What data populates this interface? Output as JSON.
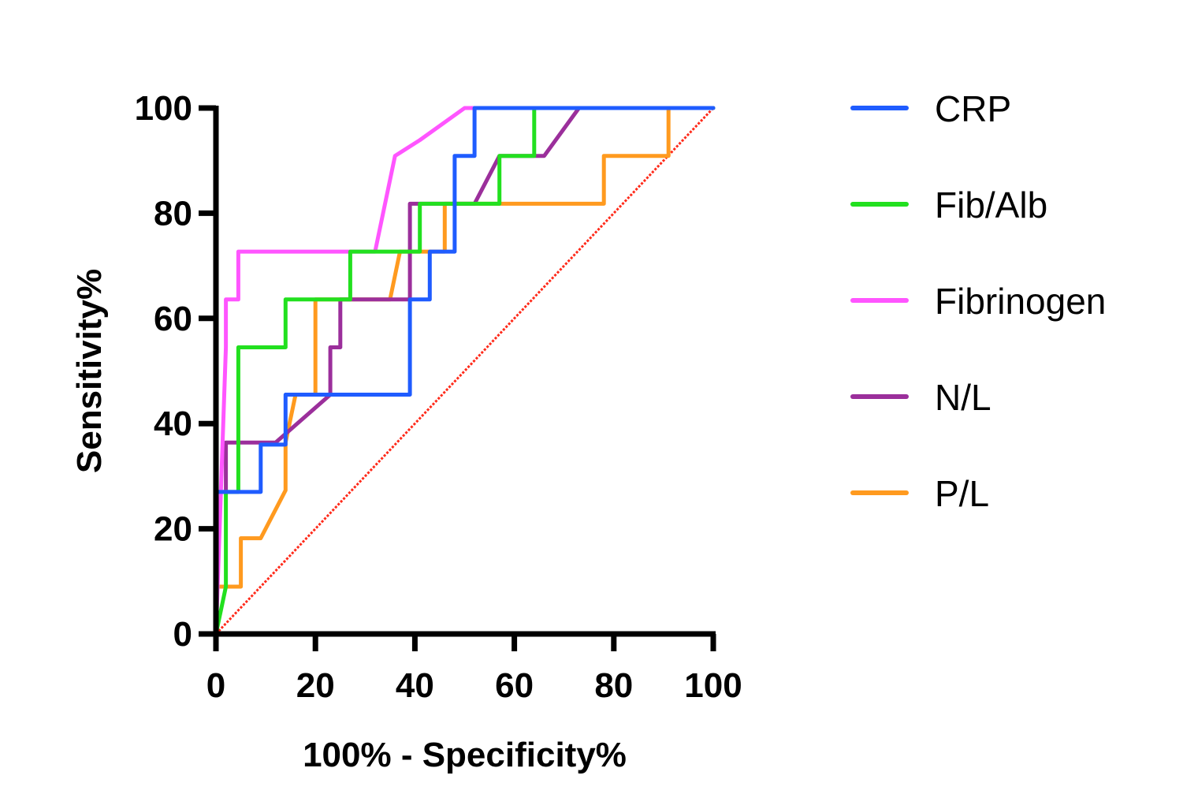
{
  "chart_data": {
    "type": "line",
    "title": "",
    "xlabel": "100% - Specificity%",
    "ylabel": "Sensitivity%",
    "xlim": [
      0,
      100
    ],
    "ylim": [
      0,
      100
    ],
    "xticks": [
      0,
      20,
      40,
      60,
      80,
      100
    ],
    "yticks": [
      0,
      20,
      40,
      60,
      80,
      100
    ],
    "grid": false,
    "legend_position": "right",
    "series": [
      {
        "name": "CRP",
        "color": "#1f5cff",
        "x": [
          0,
          0,
          0,
          2,
          2,
          9,
          9,
          14,
          14,
          39,
          39,
          43,
          43,
          48,
          48,
          52,
          52,
          100
        ],
        "y": [
          0,
          9,
          27,
          27,
          27,
          27,
          36,
          36,
          45.5,
          45.5,
          63.6,
          63.6,
          72.7,
          72.7,
          90.9,
          90.9,
          100,
          100
        ]
      },
      {
        "name": "Fib/Alb",
        "color": "#22e01f",
        "x": [
          0,
          2,
          2,
          4.5,
          4.5,
          14,
          14,
          27,
          27,
          41,
          41,
          57,
          57,
          64,
          64,
          100
        ],
        "y": [
          0,
          9,
          27,
          27,
          54.5,
          54.5,
          63.6,
          63.6,
          72.7,
          72.7,
          81.8,
          81.8,
          90.9,
          90.9,
          100,
          100
        ]
      },
      {
        "name": "Fibrinogen",
        "color": "#ff55ff",
        "x": [
          0,
          2,
          2,
          4.5,
          4.5,
          32,
          36,
          41,
          50,
          100
        ],
        "y": [
          0,
          54.5,
          63.6,
          63.6,
          72.7,
          72.7,
          90.9,
          93.9,
          100,
          100
        ]
      },
      {
        "name": "N/L",
        "color": "#9b2f9b",
        "x": [
          0,
          0,
          2,
          2,
          12,
          23,
          23,
          25,
          25,
          35,
          39,
          39,
          45,
          52,
          57,
          66,
          73,
          100
        ],
        "y": [
          0,
          27,
          27,
          36.4,
          36.4,
          45.5,
          54.5,
          54.5,
          63.6,
          63.6,
          63.6,
          81.8,
          81.8,
          81.8,
          90.9,
          90.9,
          100,
          100
        ]
      },
      {
        "name": "P/L",
        "color": "#ff9a1f",
        "x": [
          0,
          0,
          5,
          5,
          9,
          14,
          14,
          16,
          20,
          20,
          35,
          37,
          46,
          46,
          78,
          78,
          91,
          91,
          100
        ],
        "y": [
          0,
          9,
          9,
          18.2,
          18.2,
          27.3,
          36.4,
          45.5,
          45.5,
          63.6,
          63.6,
          72.7,
          72.7,
          81.8,
          81.8,
          90.9,
          90.9,
          100,
          100
        ]
      }
    ],
    "reference_line": {
      "name": "diagonal",
      "color": "#ff2a1a",
      "x": [
        0,
        100
      ],
      "y": [
        0,
        100
      ],
      "style": "dotted"
    }
  }
}
